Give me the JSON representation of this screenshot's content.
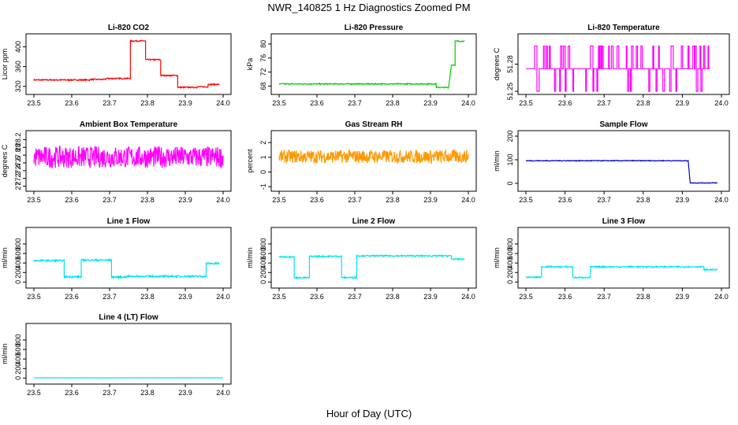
{
  "title": "NWR_140825  1 Hz Diagnostics Zoomed PM",
  "xlabel": "Hour of Day (UTC)",
  "chart_data": [
    {
      "type": "line",
      "title": "Li-820 CO2",
      "ylabel": "Licor ppm",
      "color": "#ff0000",
      "xlim": [
        23.5,
        24.0
      ],
      "ylim": [
        310,
        420
      ],
      "yticks": [
        320,
        360,
        400
      ],
      "xticks": [
        "23.5",
        "23.6",
        "23.7",
        "23.8",
        "23.9",
        "24.0"
      ],
      "segments": [
        [
          23.5,
          23.65,
          333
        ],
        [
          23.65,
          23.69,
          334
        ],
        [
          23.69,
          23.755,
          336
        ],
        [
          23.755,
          23.795,
          412
        ],
        [
          23.795,
          23.835,
          374
        ],
        [
          23.835,
          23.88,
          342
        ],
        [
          23.88,
          23.93,
          318
        ],
        [
          23.93,
          23.96,
          319
        ],
        [
          23.96,
          23.99,
          324
        ]
      ],
      "noise": 1.2
    },
    {
      "type": "line",
      "title": "Li-820 Pressure",
      "ylabel": "kPa",
      "color": "#00cc00",
      "xlim": [
        23.5,
        24.0
      ],
      "ylim": [
        66.5,
        82
      ],
      "yticks": [
        68,
        72,
        76,
        80
      ],
      "xticks": [
        "23.5",
        "23.6",
        "23.7",
        "23.8",
        "23.9",
        "24.0"
      ],
      "segments": [
        [
          23.5,
          23.915,
          68.6
        ],
        [
          23.915,
          23.948,
          67.6
        ],
        [
          23.955,
          23.965,
          74
        ],
        [
          23.965,
          23.99,
          80.8
        ]
      ],
      "noise": 0.15
    },
    {
      "type": "line",
      "title": "Li-820 Temperature",
      "ylabel": "degrees C",
      "color": "#ff00ff",
      "xlim": [
        23.5,
        24.0
      ],
      "ylim": [
        51.25,
        51.31
      ],
      "yticks": [
        51.25,
        51.28
      ],
      "xticks": [
        "23.5",
        "23.6",
        "23.7",
        "23.8",
        "23.9",
        "24.0"
      ],
      "levels": [
        51.25,
        51.275,
        51.3
      ],
      "range": [
        23.5,
        23.97
      ]
    },
    {
      "type": "line",
      "title": "Ambient Box Temperature",
      "ylabel": "degrees C",
      "color": "#ff00ff",
      "xlim": [
        23.5,
        24.0
      ],
      "ylim": [
        26.95,
        28.35
      ],
      "yticks": [
        27.0,
        27.2,
        27.4,
        27.6,
        27.8,
        28.0,
        28.2
      ],
      "xticks": [
        "23.5",
        "23.6",
        "23.7",
        "23.8",
        "23.9",
        "24.0"
      ],
      "segments": [
        [
          23.5,
          24.0,
          27.75
        ]
      ],
      "noise": 0.28
    },
    {
      "type": "line",
      "title": "Gas Stream RH",
      "ylabel": "percent",
      "color": "#ff9900",
      "xlim": [
        23.5,
        24.0
      ],
      "ylim": [
        -1.1,
        2.6
      ],
      "yticks": [
        -1,
        0,
        1,
        2
      ],
      "xticks": [
        "23.5",
        "23.6",
        "23.7",
        "23.8",
        "23.9",
        "24.0"
      ],
      "segments": [
        [
          23.5,
          24.0,
          1.05
        ]
      ],
      "noise": 0.45
    },
    {
      "type": "line",
      "title": "Sample Flow",
      "ylabel": "ml/min",
      "color": "#0000cc",
      "xlim": [
        23.5,
        24.0
      ],
      "ylim": [
        -20,
        210
      ],
      "yticks": [
        0,
        100,
        200
      ],
      "xticks": [
        "23.5",
        "23.6",
        "23.7",
        "23.8",
        "23.9",
        "24.0"
      ],
      "segments": [
        [
          23.5,
          23.915,
          96
        ],
        [
          23.92,
          23.99,
          2
        ]
      ],
      "noise": 1.5
    },
    {
      "type": "line",
      "title": "Line 1 Flow",
      "ylabel": "ml/min",
      "color": "#00e5ee",
      "xlim": [
        23.5,
        24.0
      ],
      "ylim": [
        -60,
        1080
      ],
      "yticks": [
        0,
        200,
        400,
        600,
        800
      ],
      "xticks": [
        "23.5",
        "23.6",
        "23.7",
        "23.8",
        "23.9",
        "24.0"
      ],
      "segments": [
        [
          23.5,
          23.58,
          450
        ],
        [
          23.58,
          23.625,
          110
        ],
        [
          23.625,
          23.705,
          460
        ],
        [
          23.705,
          23.745,
          105
        ],
        [
          23.745,
          23.955,
          120
        ],
        [
          23.955,
          23.99,
          390
        ]
      ],
      "noise": 18
    },
    {
      "type": "line",
      "title": "Line 2 Flow",
      "ylabel": "ml/min",
      "color": "#00e5ee",
      "xlim": [
        23.5,
        24.0
      ],
      "ylim": [
        -60,
        1080
      ],
      "yticks": [
        0,
        200,
        400,
        600,
        800
      ],
      "xticks": [
        "23.5",
        "23.6",
        "23.7",
        "23.8",
        "23.9",
        "24.0"
      ],
      "segments": [
        [
          23.5,
          23.54,
          530
        ],
        [
          23.54,
          23.58,
          90
        ],
        [
          23.58,
          23.665,
          540
        ],
        [
          23.665,
          23.705,
          95
        ],
        [
          23.705,
          23.955,
          550
        ],
        [
          23.955,
          23.99,
          480
        ]
      ],
      "noise": 14
    },
    {
      "type": "line",
      "title": "Line 3 Flow",
      "ylabel": "ml/min",
      "color": "#00e5ee",
      "xlim": [
        23.5,
        24.0
      ],
      "ylim": [
        -60,
        1080
      ],
      "yticks": [
        0,
        200,
        400,
        600,
        800
      ],
      "xticks": [
        "23.5",
        "23.6",
        "23.7",
        "23.8",
        "23.9",
        "24.0"
      ],
      "segments": [
        [
          23.5,
          23.54,
          100
        ],
        [
          23.54,
          23.62,
          320
        ],
        [
          23.62,
          23.665,
          95
        ],
        [
          23.665,
          23.955,
          320
        ],
        [
          23.955,
          23.99,
          260
        ]
      ],
      "noise": 14
    },
    {
      "type": "line",
      "title": "Line 4 (LT) Flow",
      "ylabel": "ml/min",
      "color": "#00e5ee",
      "xlim": [
        23.5,
        24.0
      ],
      "ylim": [
        -60,
        1080
      ],
      "yticks": [
        0,
        200,
        400,
        600,
        800
      ],
      "xticks": [
        "23.5",
        "23.6",
        "23.7",
        "23.8",
        "23.9",
        "24.0"
      ],
      "segments": [
        [
          23.5,
          24.0,
          5
        ]
      ],
      "noise": 2
    }
  ]
}
